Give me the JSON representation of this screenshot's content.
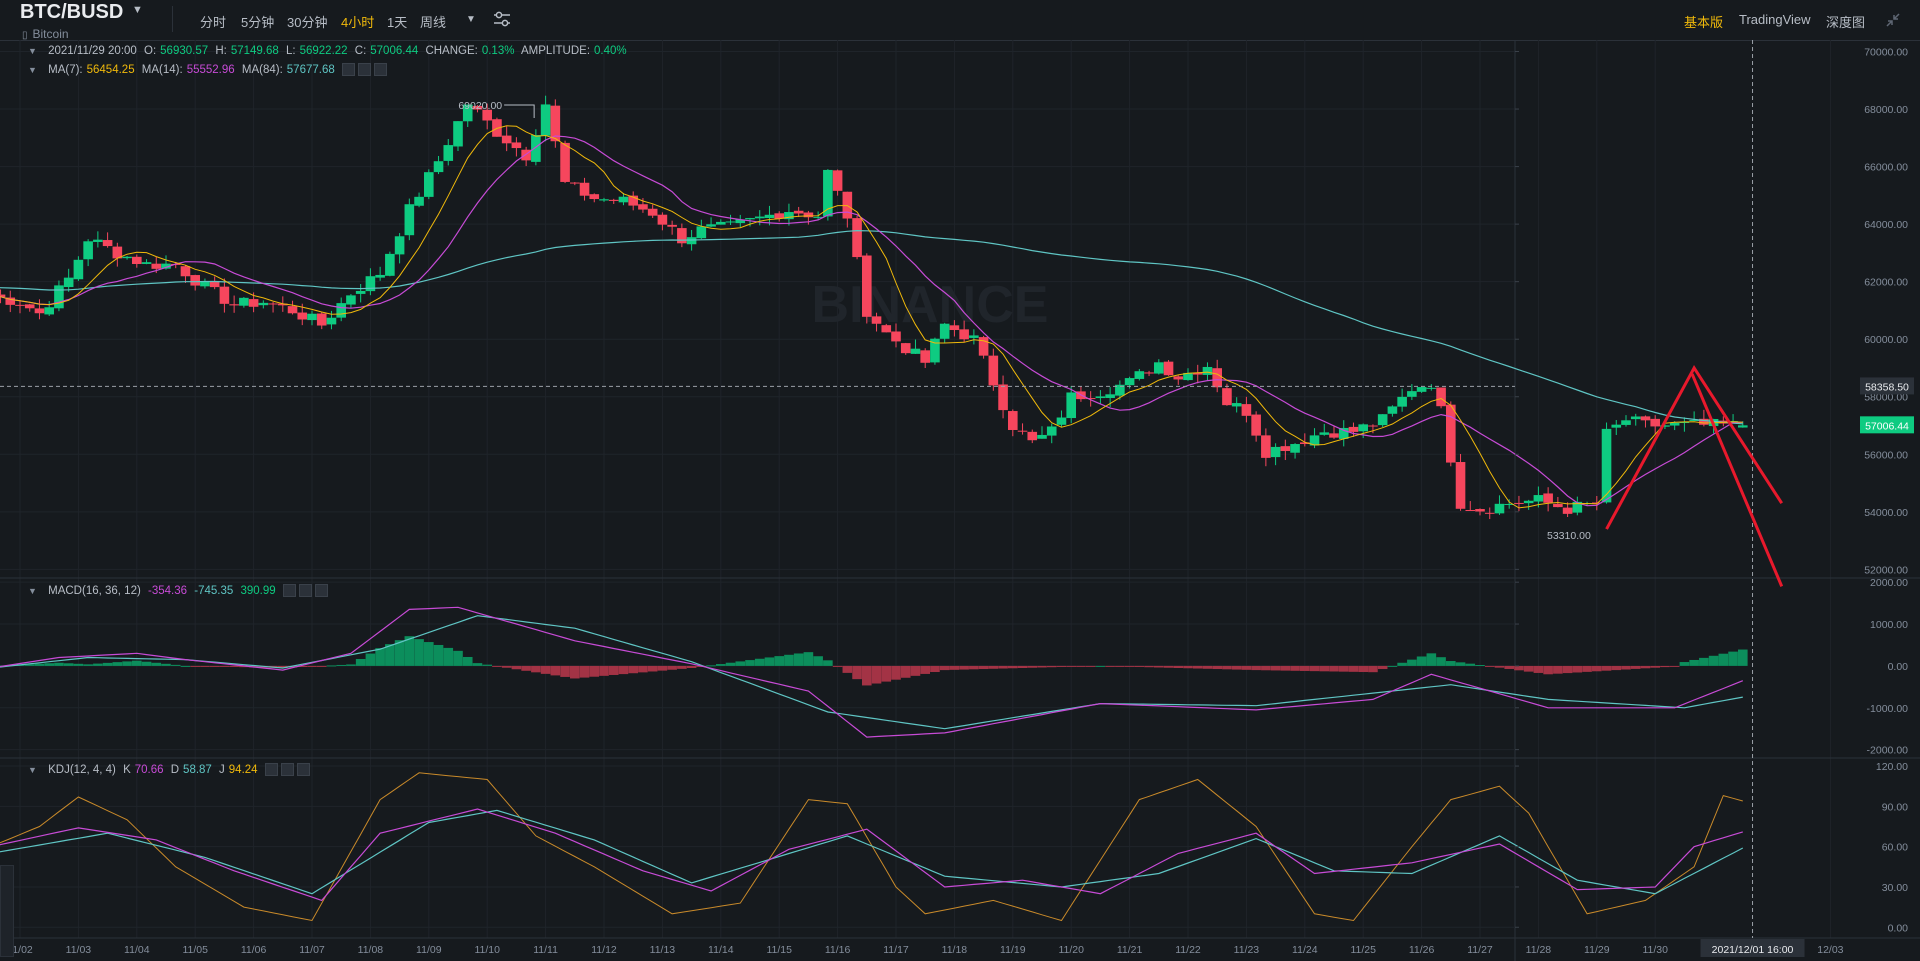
{
  "header": {
    "symbol": "BTC/BUSD",
    "subname": "Bitcoin",
    "intervals": [
      "分时",
      "5分钟",
      "30分钟",
      "4小时",
      "1天",
      "周线"
    ],
    "active_interval": "4小时",
    "right_links": [
      "基本版",
      "TradingView",
      "深度图"
    ],
    "active_link": "基本版"
  },
  "ohlc_legend": {
    "time": "2021/11/29 20:00",
    "o_label": "O:",
    "o": "56930.57",
    "h_label": "H:",
    "h": "57149.68",
    "l_label": "L:",
    "l": "56922.22",
    "c_label": "C:",
    "c": "57006.44",
    "change_label": "CHANGE:",
    "change": "0.13%",
    "amp_label": "AMPLITUDE:",
    "amp": "0.40%"
  },
  "ma_legend": {
    "ma7_label": "MA(7):",
    "ma7": "56454.25",
    "ma14_label": "MA(14):",
    "ma14": "55552.96",
    "ma84_label": "MA(84):",
    "ma84": "57677.68"
  },
  "macd_legend": {
    "label": "MACD(16, 36, 12)",
    "dif": "-354.36",
    "dea": "-745.35",
    "hist": "390.99"
  },
  "kdj_legend": {
    "label": "KDJ(12, 4, 4)",
    "k_label": "K",
    "k": "70.66",
    "d_label": "D",
    "d": "58.87",
    "j_label": "J",
    "j": "94.24"
  },
  "colors": {
    "up": "#0ecb81",
    "down": "#f6465d",
    "ma7": "#f0b90b",
    "ma14": "#c74bd6",
    "ma84": "#5fc5c4",
    "annotation": "#e8192c",
    "accent": "#f0b90b"
  },
  "chart_data": [
    {
      "type": "candlestick",
      "title": "BTC/BUSD",
      "interval": "4h",
      "x_tick_labels": [
        "11/02",
        "11/03",
        "11/04",
        "11/05",
        "11/06",
        "11/07",
        "11/08",
        "11/09",
        "11/10",
        "11/11",
        "11/12",
        "11/13",
        "11/14",
        "11/15",
        "11/16",
        "11/17",
        "11/18",
        "11/19",
        "11/20",
        "11/21",
        "11/22",
        "11/23",
        "11/24",
        "11/25",
        "11/26",
        "11/27",
        "11/28",
        "11/29",
        "11/30",
        "12/03"
      ],
      "crosshair_x_label": "2021/12/01 16:00",
      "y_ticks": [
        52000,
        54000,
        56000,
        58000,
        60000,
        62000,
        64000,
        66000,
        68000,
        70000
      ],
      "y_tick_labels": [
        "52000.00",
        "54000.00",
        "56000.00",
        "58000.00",
        "60000.00",
        "62000.00",
        "64000.00",
        "66000.00",
        "68000.00",
        "70000.00"
      ],
      "ylim": [
        51700,
        70400
      ],
      "high_label": "69020.00",
      "low_label": "53310.00",
      "crosshair_price_label": "58358.50",
      "last_price_label": "57006.44",
      "close_anchors": [
        [
          "11/01 12:00",
          61500
        ],
        [
          "11/02 00:00",
          61300
        ],
        [
          "11/02 08:00",
          60900
        ],
        [
          "11/02 20:00",
          62100
        ],
        [
          "11/03 04:00",
          63500
        ],
        [
          "11/03 16:00",
          63000
        ],
        [
          "11/04 04:00",
          62600
        ],
        [
          "11/04 16:00",
          62600
        ],
        [
          "11/05 04:00",
          61800
        ],
        [
          "11/05 16:00",
          61200
        ],
        [
          "11/06 04:00",
          61300
        ],
        [
          "11/06 16:00",
          61000
        ],
        [
          "11/07 04:00",
          60500
        ],
        [
          "11/07 16:00",
          61600
        ],
        [
          "11/08 04:00",
          62300
        ],
        [
          "11/08 16:00",
          64500
        ],
        [
          "11/09 04:00",
          66200
        ],
        [
          "11/09 16:00",
          68200
        ],
        [
          "11/10 04:00",
          67200
        ],
        [
          "11/10 16:00",
          66400
        ],
        [
          "11/11 00:00",
          68200
        ],
        [
          "11/11 08:00",
          65400
        ],
        [
          "11/11 20:00",
          64900
        ],
        [
          "11/12 08:00",
          64800
        ],
        [
          "11/12 20:00",
          64400
        ],
        [
          "11/13 08:00",
          63500
        ],
        [
          "11/13 16:00",
          63800
        ],
        [
          "11/14 04:00",
          63900
        ],
        [
          "11/14 16:00",
          64200
        ],
        [
          "11/15 04:00",
          64500
        ],
        [
          "11/15 16:00",
          64300
        ],
        [
          "11/15 20:00",
          65800
        ],
        [
          "11/16 04:00",
          64300
        ],
        [
          "11/16 12:00",
          61000
        ],
        [
          "11/16 20:00",
          60200
        ],
        [
          "11/17 04:00",
          59700
        ],
        [
          "11/17 12:00",
          59200
        ],
        [
          "11/17 20:00",
          60500
        ],
        [
          "11/18 08:00",
          60000
        ],
        [
          "11/18 16:00",
          58500
        ],
        [
          "11/19 00:00",
          57000
        ],
        [
          "11/19 08:00",
          56400
        ],
        [
          "11/19 16:00",
          56800
        ],
        [
          "11/20 00:00",
          58000
        ],
        [
          "11/20 12:00",
          58200
        ],
        [
          "11/21 00:00",
          58500
        ],
        [
          "11/21 12:00",
          59200
        ],
        [
          "11/21 20:00",
          58700
        ],
        [
          "11/22 08:00",
          59100
        ],
        [
          "11/22 16:00",
          57800
        ],
        [
          "11/23 00:00",
          57500
        ],
        [
          "11/23 08:00",
          56100
        ],
        [
          "11/23 20:00",
          56400
        ],
        [
          "11/24 08:00",
          56800
        ],
        [
          "11/24 20:00",
          56800
        ],
        [
          "11/25 08:00",
          57200
        ],
        [
          "11/25 20:00",
          58300
        ],
        [
          "11/26 04:00",
          58500
        ],
        [
          "11/26 08:00",
          57500
        ],
        [
          "11/26 16:00",
          54300
        ],
        [
          "11/27 00:00",
          54100
        ],
        [
          "11/27 12:00",
          54300
        ],
        [
          "11/28 00:00",
          54400
        ],
        [
          "11/28 12:00",
          54100
        ],
        [
          "11/29 00:00",
          54300
        ],
        [
          "11/29 04:00",
          56700
        ],
        [
          "11/29 12:00",
          57200
        ],
        [
          "11/29 20:00",
          57006.44
        ]
      ],
      "ma_values_last": {
        "MA(7)": 56454.25,
        "MA(14)": 55552.96,
        "MA(84)": 57677.68
      },
      "annotation": "hand-drawn red up/down arrow lines projecting from 11/29 to 12/02"
    },
    {
      "type": "bar+line",
      "title": "MACD(16, 36, 12)",
      "y_ticks": [
        -2000,
        -1000,
        0,
        1000,
        2000
      ],
      "y_tick_labels": [
        "-2000.00",
        "-1000.00",
        "0.00",
        "1000.00",
        "2000.00"
      ],
      "ylim": [
        -2200,
        2100
      ],
      "dif_anchors": [
        [
          0,
          -50
        ],
        [
          7,
          200
        ],
        [
          15,
          300
        ],
        [
          20,
          150
        ],
        [
          30,
          -100
        ],
        [
          37,
          300
        ],
        [
          43,
          1350
        ],
        [
          48,
          1400
        ],
        [
          60,
          600
        ],
        [
          72,
          50
        ],
        [
          84,
          -600
        ],
        [
          90,
          -1700
        ],
        [
          98,
          -1600
        ],
        [
          114,
          -900
        ],
        [
          130,
          -1050
        ],
        [
          142,
          -800
        ],
        [
          148,
          -200
        ],
        [
          160,
          -1000
        ],
        [
          173,
          -1000
        ],
        [
          180,
          -354
        ]
      ],
      "dea_anchors": [
        [
          0,
          -50
        ],
        [
          10,
          200
        ],
        [
          20,
          150
        ],
        [
          30,
          -50
        ],
        [
          40,
          400
        ],
        [
          50,
          1200
        ],
        [
          60,
          900
        ],
        [
          72,
          100
        ],
        [
          86,
          -1100
        ],
        [
          98,
          -1500
        ],
        [
          114,
          -900
        ],
        [
          130,
          -950
        ],
        [
          142,
          -650
        ],
        [
          150,
          -450
        ],
        [
          160,
          -800
        ],
        [
          174,
          -1000
        ],
        [
          180,
          -745
        ]
      ],
      "hist_last": 390.99
    },
    {
      "type": "line",
      "title": "KDJ(12, 4, 4)",
      "y_ticks": [
        0,
        30,
        60,
        90,
        120
      ],
      "y_tick_labels": [
        "0.00",
        "30.00",
        "60.00",
        "90.00",
        "120.00"
      ],
      "ylim": [
        -8,
        126
      ],
      "k_anchors": [
        [
          0,
          60
        ],
        [
          9,
          74
        ],
        [
          17,
          65
        ],
        [
          25,
          42
        ],
        [
          34,
          20
        ],
        [
          40,
          70
        ],
        [
          50,
          88
        ],
        [
          58,
          70
        ],
        [
          67,
          42
        ],
        [
          74,
          27
        ],
        [
          82,
          58
        ],
        [
          90,
          73
        ],
        [
          98,
          30
        ],
        [
          106,
          35
        ],
        [
          114,
          25
        ],
        [
          122,
          55
        ],
        [
          130,
          70
        ],
        [
          136,
          40
        ],
        [
          146,
          48
        ],
        [
          155,
          62
        ],
        [
          163,
          28
        ],
        [
          171,
          30
        ],
        [
          175,
          60
        ],
        [
          180,
          71
        ]
      ],
      "d_anchors": [
        [
          0,
          55
        ],
        [
          12,
          70
        ],
        [
          22,
          52
        ],
        [
          33,
          25
        ],
        [
          45,
          78
        ],
        [
          52,
          87
        ],
        [
          62,
          65
        ],
        [
          72,
          33
        ],
        [
          88,
          68
        ],
        [
          98,
          38
        ],
        [
          110,
          30
        ],
        [
          120,
          40
        ],
        [
          130,
          66
        ],
        [
          138,
          42
        ],
        [
          146,
          40
        ],
        [
          155,
          68
        ],
        [
          163,
          35
        ],
        [
          171,
          25
        ],
        [
          180,
          59
        ]
      ],
      "j_anchors": [
        [
          0,
          60
        ],
        [
          5,
          75
        ],
        [
          9,
          97
        ],
        [
          14,
          80
        ],
        [
          19,
          45
        ],
        [
          26,
          15
        ],
        [
          33,
          5
        ],
        [
          40,
          95
        ],
        [
          44,
          115
        ],
        [
          51,
          110
        ],
        [
          56,
          68
        ],
        [
          62,
          45
        ],
        [
          70,
          10
        ],
        [
          77,
          18
        ],
        [
          84,
          95
        ],
        [
          88,
          92
        ],
        [
          93,
          30
        ],
        [
          96,
          10
        ],
        [
          103,
          20
        ],
        [
          110,
          5
        ],
        [
          118,
          95
        ],
        [
          124,
          110
        ],
        [
          130,
          75
        ],
        [
          136,
          10
        ],
        [
          140,
          5
        ],
        [
          146,
          60
        ],
        [
          150,
          95
        ],
        [
          155,
          105
        ],
        [
          158,
          85
        ],
        [
          164,
          10
        ],
        [
          170,
          20
        ],
        [
          175,
          45
        ],
        [
          178,
          98
        ],
        [
          180,
          94
        ]
      ]
    }
  ]
}
